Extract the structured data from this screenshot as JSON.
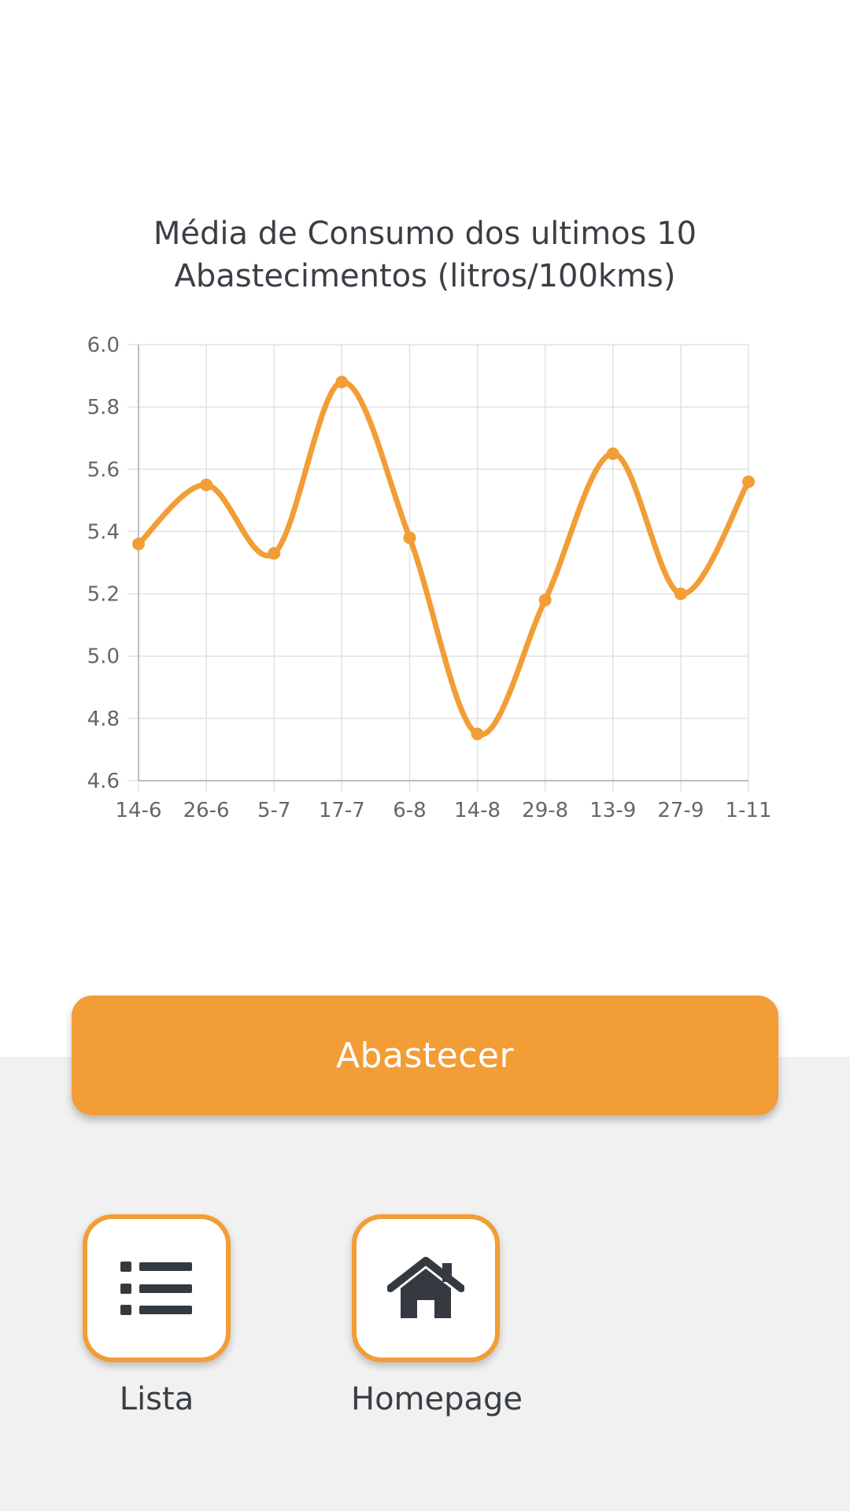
{
  "chart_data": {
    "type": "line",
    "title": [
      "Média de Consumo dos ultimos 10",
      "Abastecimentos (litros/100kms)"
    ],
    "categories": [
      "14-6",
      "26-6",
      "5-7",
      "17-7",
      "6-8",
      "14-8",
      "29-8",
      "13-9",
      "27-9",
      "1-11"
    ],
    "series": [
      {
        "values": [
          5.36,
          5.55,
          5.33,
          5.88,
          5.38,
          4.75,
          5.18,
          5.65,
          5.2,
          5.56
        ]
      }
    ],
    "ylim": [
      4.6,
      6.0
    ],
    "yticks": [
      "6.0",
      "5.8",
      "5.6",
      "5.4",
      "5.2",
      "5.0",
      "4.8",
      "4.6"
    ],
    "grid": true,
    "line_color": "#f29d36"
  },
  "actions": {
    "primary_label": "Abastecer",
    "primary_color": "#f29d36"
  },
  "nav": {
    "lista": {
      "label": "Lista",
      "icon": "list-icon"
    },
    "homepage": {
      "label": "Homepage",
      "icon": "home-icon"
    }
  }
}
